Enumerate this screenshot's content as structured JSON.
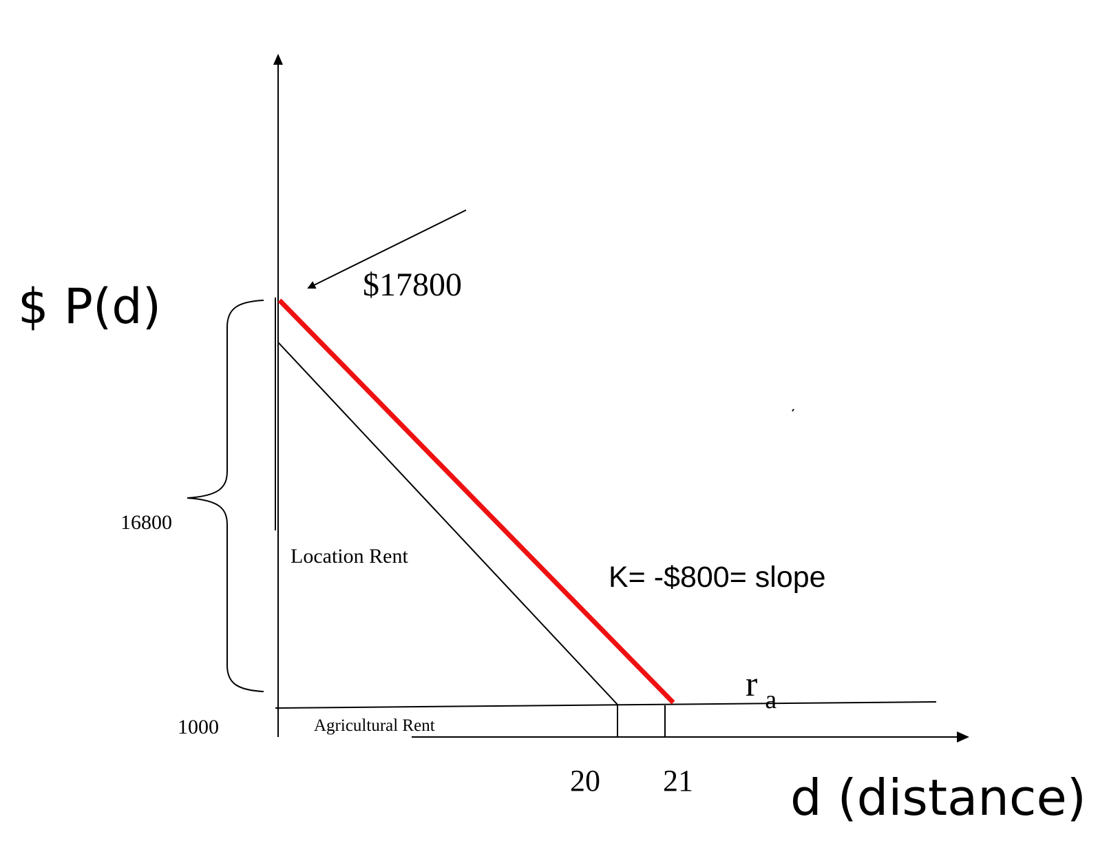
{
  "y_axis_label": "$ P(d)",
  "x_axis_label": "d (distance)",
  "intercept_label": "$17800",
  "brace_label": "16800",
  "ag_rent_value_label": "1000",
  "location_rent_label": "Location Rent",
  "agricultural_rent_label": "Agricultural Rent",
  "slope_label": "K= -$800= slope",
  "ra_label": {
    "main": "r",
    "sub": "a"
  },
  "x_tick_labels": [
    "20",
    "21"
  ],
  "colors": {
    "highlight_line": "#ee1111",
    "ink": "#000000"
  }
}
